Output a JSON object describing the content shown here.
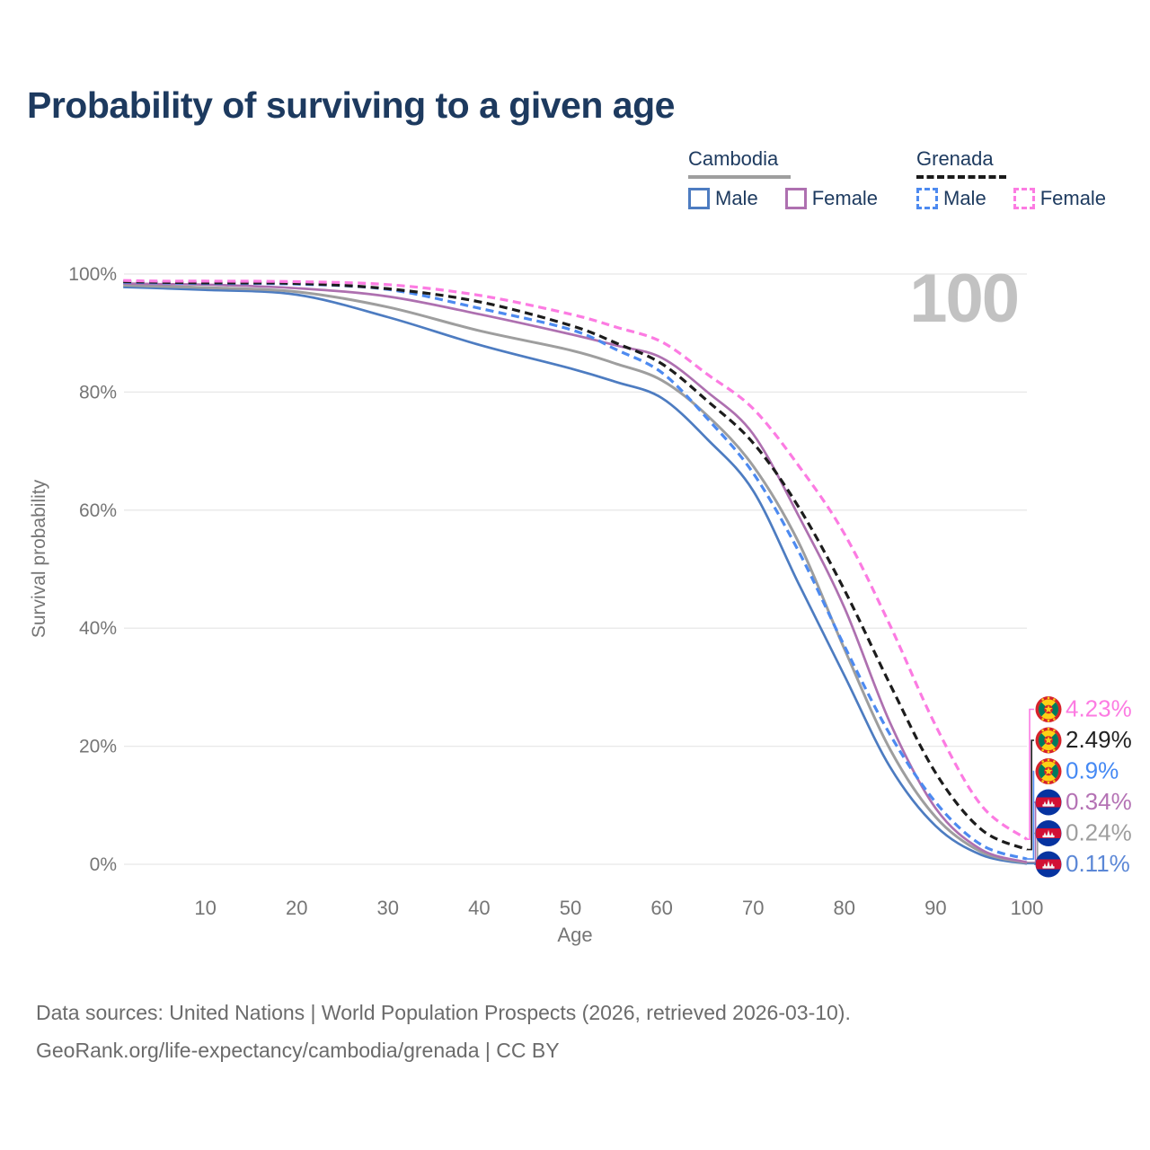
{
  "title": "Probability of surviving to a given age",
  "watermark": "100",
  "legend": {
    "groups": [
      {
        "country": "Cambodia",
        "line_style": "solid",
        "underline_color": "#9e9e9e",
        "items": [
          {
            "label": "Male",
            "color": "#4d7cc1",
            "dash": false
          },
          {
            "label": "Female",
            "color": "#ae70b0",
            "dash": false
          }
        ]
      },
      {
        "country": "Grenada",
        "line_style": "dashed",
        "underline_color": "#1a1a1a",
        "items": [
          {
            "label": "Male",
            "color": "#4d8af0",
            "dash": true
          },
          {
            "label": "Female",
            "color": "#fc7be2",
            "dash": true
          }
        ]
      }
    ]
  },
  "chart_data": {
    "type": "line",
    "title": "Probability of surviving to a given age",
    "xlabel": "Age",
    "ylabel": "Survival probability",
    "xlim": [
      0,
      100
    ],
    "ylim": [
      0,
      100
    ],
    "grid": "horizontal",
    "x_ticks": [
      10,
      20,
      30,
      40,
      50,
      60,
      70,
      80,
      90,
      100
    ],
    "y_ticks": [
      {
        "value": 0,
        "label": "0%"
      },
      {
        "value": 20,
        "label": "20%"
      },
      {
        "value": 40,
        "label": "40%"
      },
      {
        "value": 60,
        "label": "60%"
      },
      {
        "value": 80,
        "label": "80%"
      },
      {
        "value": 100,
        "label": "100%"
      }
    ],
    "x": [
      1,
      5,
      10,
      20,
      30,
      40,
      50,
      55,
      60,
      65,
      70,
      75,
      80,
      85,
      90,
      95,
      100
    ],
    "series": [
      {
        "id": "cambodia-male",
        "name": "Cambodia Male",
        "country": "Cambodia",
        "sex": "Male",
        "color": "#4d7cc1",
        "dash": false,
        "flag": "cambodia",
        "end_label": "0.11%",
        "end_label_color": "#5b87d6",
        "values": [
          97.8,
          97.6,
          97.3,
          96.5,
          92.7,
          88.0,
          84.0,
          81.7,
          79.0,
          72.0,
          63.3,
          47.5,
          32.0,
          16.5,
          6.5,
          1.6,
          0.11
        ]
      },
      {
        "id": "cambodia-all",
        "name": "Cambodia",
        "country": "Cambodia",
        "sex": "Both",
        "color": "#9e9e9e",
        "dash": false,
        "flag": "cambodia",
        "end_label": "0.24%",
        "end_label_color": "#9e9e9e",
        "values": [
          98.1,
          97.9,
          97.7,
          97.0,
          94.4,
          90.4,
          87.1,
          84.8,
          82.0,
          76.0,
          67.5,
          54.5,
          36.5,
          19.5,
          8.0,
          2.1,
          0.24
        ]
      },
      {
        "id": "cambodia-female",
        "name": "Cambodia Female",
        "country": "Cambodia",
        "sex": "Female",
        "color": "#ae70b0",
        "dash": false,
        "flag": "cambodia",
        "end_label": "0.34%",
        "end_label_color": "#b472b4",
        "values": [
          98.4,
          98.3,
          98.2,
          97.6,
          96.2,
          93.2,
          89.8,
          87.9,
          85.8,
          80.0,
          72.9,
          59.0,
          43.5,
          24.0,
          9.5,
          2.5,
          0.34
        ]
      },
      {
        "id": "grenada-male",
        "name": "Grenada Male",
        "country": "Grenada",
        "sex": "Male",
        "color": "#4d8af0",
        "dash": true,
        "flag": "grenada",
        "end_label": "0.9%",
        "end_label_color": "#4589f4",
        "values": [
          98.6,
          98.5,
          98.4,
          98.3,
          97.4,
          94.2,
          90.6,
          87.2,
          83.3,
          75.5,
          66.3,
          53.0,
          37.0,
          22.0,
          10.5,
          3.3,
          0.9
        ]
      },
      {
        "id": "grenada-all",
        "name": "Grenada",
        "country": "Grenada",
        "sex": "Both",
        "color": "#1c1c1c",
        "dash": true,
        "flag": "grenada",
        "end_label": "2.49%",
        "end_label_color": "#212121",
        "values": [
          98.7,
          98.6,
          98.5,
          98.4,
          97.5,
          95.3,
          91.3,
          88.3,
          84.8,
          78.5,
          71.4,
          60.5,
          46.5,
          30.5,
          15.5,
          5.9,
          2.49
        ]
      },
      {
        "id": "grenada-female",
        "name": "Grenada Female",
        "country": "Grenada",
        "sex": "Female",
        "color": "#fc7be2",
        "dash": true,
        "flag": "grenada",
        "end_label": "4.23%",
        "end_label_color": "#fc7be2",
        "values": [
          98.9,
          98.8,
          98.8,
          98.7,
          98.2,
          96.4,
          93.2,
          91.0,
          88.5,
          83.0,
          77.2,
          67.5,
          56.0,
          40.5,
          23.5,
          10.0,
          4.23
        ]
      }
    ]
  },
  "footer": {
    "line1": "Data sources: United Nations | World Population Prospects (2026, retrieved 2026-03-10).",
    "line2": "GeoRank.org/life-expectancy/cambodia/grenada | CC BY"
  }
}
